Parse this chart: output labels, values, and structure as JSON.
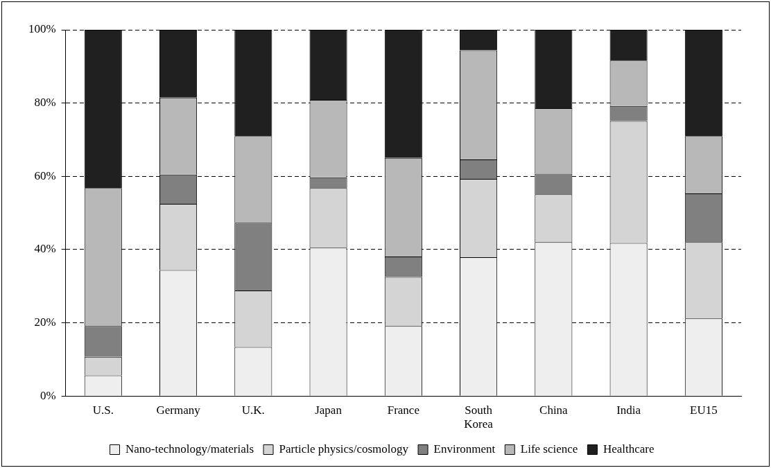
{
  "chart_data": {
    "type": "bar",
    "stacked": true,
    "categories": [
      "U.S.",
      "Germany",
      "U.K.",
      "Japan",
      "France",
      "South Korea",
      "China",
      "India",
      "EU15"
    ],
    "series": [
      {
        "name": "Nano-technology/materials",
        "color": "#eeeeee",
        "values": [
          5.6,
          34.4,
          13.4,
          40.5,
          19.1,
          37.9,
          42.0,
          41.8,
          21.2
        ]
      },
      {
        "name": "Particle physics/cosmology",
        "color": "#d4d4d4",
        "values": [
          5.1,
          18.1,
          15.4,
          16.3,
          13.4,
          21.4,
          13.1,
          33.3,
          20.8
        ]
      },
      {
        "name": "Environment",
        "color": "#808080",
        "values": [
          8.4,
          8.0,
          18.5,
          2.9,
          5.6,
          5.3,
          5.6,
          4.1,
          13.3
        ]
      },
      {
        "name": "Life science",
        "color": "#b8b8b8",
        "values": [
          37.7,
          21.0,
          23.7,
          21.2,
          26.9,
          29.8,
          17.9,
          12.4,
          15.7
        ]
      },
      {
        "name": "Healthcare",
        "color": "#202020",
        "values": [
          43.2,
          18.5,
          29.0,
          19.1,
          35.0,
          5.6,
          21.4,
          8.4,
          29.0
        ]
      }
    ],
    "ylim": [
      0,
      100
    ],
    "yticks": [
      {
        "value": 0,
        "label": "0%"
      },
      {
        "value": 20,
        "label": "20%"
      },
      {
        "value": 40,
        "label": "40%"
      },
      {
        "value": 60,
        "label": "60%"
      },
      {
        "value": 80,
        "label": "80%"
      },
      {
        "value": 100,
        "label": "100%"
      }
    ],
    "grid": "y",
    "legend": "bottom"
  }
}
